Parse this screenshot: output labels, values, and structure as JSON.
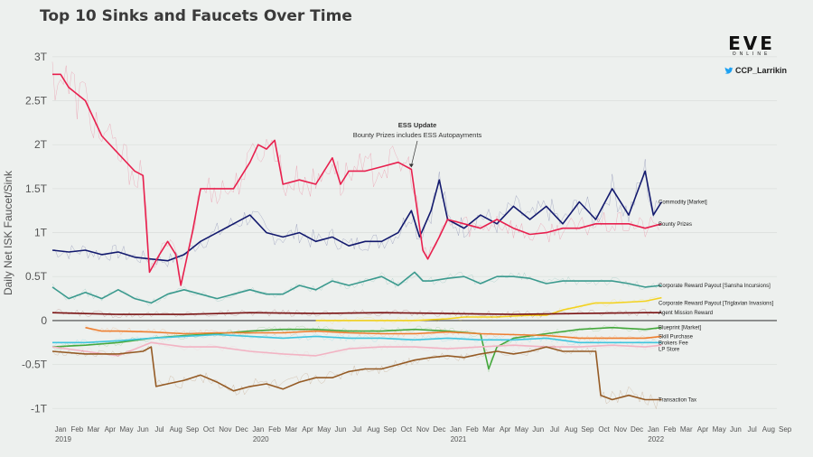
{
  "title": "Top 10 Sinks and Faucets Over Time",
  "logo": {
    "mark": "EVE",
    "sub": "ONLINE"
  },
  "twitter_handle": "CCP_Larrikin",
  "chart_data": {
    "type": "line",
    "title": "Top 10 Sinks and Faucets Over Time",
    "ylabel": "Daily Net ISK Faucet/Sink",
    "xlabel": "",
    "ylim": [
      -1.1,
      3.05
    ],
    "yticks": [
      {
        "v": 3,
        "label": "3T"
      },
      {
        "v": 2.5,
        "label": "2.5T"
      },
      {
        "v": 2,
        "label": "2T"
      },
      {
        "v": 1.5,
        "label": "1.5T"
      },
      {
        "v": 1,
        "label": "1T"
      },
      {
        "v": 0.5,
        "label": "0.5T"
      },
      {
        "v": 0,
        "label": "0"
      },
      {
        "v": -0.5,
        "label": "-0.5T"
      },
      {
        "v": -1,
        "label": "-1T"
      }
    ],
    "xlim": [
      0,
      44
    ],
    "xticks": [
      "Jan",
      "Feb",
      "Mar",
      "Apr",
      "May",
      "Jun",
      "Jul",
      "Aug",
      "Sep",
      "Oct",
      "Nov",
      "Dec",
      "Jan",
      "Feb",
      "Mar",
      "Apr",
      "May",
      "Jun",
      "Jul",
      "Aug",
      "Sep",
      "Oct",
      "Nov",
      "Dec",
      "Jan",
      "Feb",
      "Mar",
      "Apr",
      "May",
      "Jun",
      "Jul",
      "Aug",
      "Sep",
      "Oct",
      "Nov",
      "Dec",
      "Jan",
      "Feb",
      "Mar",
      "Apr",
      "May",
      "Jun",
      "Jul",
      "Aug",
      "Sep"
    ],
    "year_labels": [
      {
        "month_index": 0,
        "label": "2019"
      },
      {
        "month_index": 12,
        "label": "2020"
      },
      {
        "month_index": 24,
        "label": "2021"
      },
      {
        "month_index": 36,
        "label": "2022"
      }
    ],
    "annotation": {
      "title": "ESS Update",
      "text": "Bounty Prizes includes ESS Autopayments",
      "x": 21.8,
      "y": 1.72
    },
    "series": [
      {
        "name": "Commodity [Market]",
        "color": "#131a6e",
        "points": [
          [
            0,
            0.8
          ],
          [
            1,
            0.78
          ],
          [
            2,
            0.8
          ],
          [
            3,
            0.75
          ],
          [
            4,
            0.78
          ],
          [
            5,
            0.72
          ],
          [
            6,
            0.7
          ],
          [
            7,
            0.68
          ],
          [
            8,
            0.75
          ],
          [
            9,
            0.9
          ],
          [
            10,
            1.0
          ],
          [
            11,
            1.1
          ],
          [
            12,
            1.2
          ],
          [
            13,
            1.0
          ],
          [
            14,
            0.95
          ],
          [
            15,
            1.0
          ],
          [
            16,
            0.9
          ],
          [
            17,
            0.95
          ],
          [
            18,
            0.85
          ],
          [
            19,
            0.9
          ],
          [
            20,
            0.9
          ],
          [
            21,
            1.0
          ],
          [
            21.8,
            1.25
          ],
          [
            22.3,
            0.95
          ],
          [
            23,
            1.25
          ],
          [
            23.5,
            1.6
          ],
          [
            24,
            1.15
          ],
          [
            25,
            1.05
          ],
          [
            26,
            1.2
          ],
          [
            27,
            1.1
          ],
          [
            28,
            1.3
          ],
          [
            29,
            1.15
          ],
          [
            30,
            1.3
          ],
          [
            31,
            1.1
          ],
          [
            32,
            1.35
          ],
          [
            33,
            1.15
          ],
          [
            34,
            1.5
          ],
          [
            35,
            1.2
          ],
          [
            36,
            1.7
          ],
          [
            36.5,
            1.2
          ],
          [
            37,
            1.35
          ]
        ]
      },
      {
        "name": "Bounty Prizes",
        "color": "#e8204e",
        "points": [
          [
            0,
            2.8
          ],
          [
            0.5,
            2.8
          ],
          [
            1,
            2.65
          ],
          [
            2,
            2.5
          ],
          [
            3,
            2.1
          ],
          [
            4,
            1.9
          ],
          [
            5,
            1.7
          ],
          [
            5.5,
            1.65
          ],
          [
            5.9,
            0.55
          ],
          [
            6.5,
            0.75
          ],
          [
            7,
            0.9
          ],
          [
            7.5,
            0.75
          ],
          [
            7.8,
            0.4
          ],
          [
            8.5,
            1.0
          ],
          [
            9,
            1.5
          ],
          [
            10,
            1.5
          ],
          [
            11,
            1.5
          ],
          [
            12,
            1.8
          ],
          [
            12.5,
            2.0
          ],
          [
            13,
            1.95
          ],
          [
            13.5,
            2.05
          ],
          [
            14,
            1.55
          ],
          [
            15,
            1.6
          ],
          [
            16,
            1.55
          ],
          [
            17,
            1.85
          ],
          [
            17.5,
            1.55
          ],
          [
            18,
            1.7
          ],
          [
            19,
            1.7
          ],
          [
            20,
            1.75
          ],
          [
            21,
            1.8
          ],
          [
            21.8,
            1.72
          ],
          [
            22.5,
            0.8
          ],
          [
            22.8,
            0.7
          ],
          [
            23.5,
            0.95
          ],
          [
            24,
            1.15
          ],
          [
            25,
            1.1
          ],
          [
            26,
            1.05
          ],
          [
            27,
            1.15
          ],
          [
            28,
            1.05
          ],
          [
            29,
            0.98
          ],
          [
            30,
            1.0
          ],
          [
            31,
            1.05
          ],
          [
            32,
            1.05
          ],
          [
            33,
            1.1
          ],
          [
            34,
            1.1
          ],
          [
            35,
            1.1
          ],
          [
            36,
            1.05
          ],
          [
            37,
            1.1
          ]
        ]
      },
      {
        "name": "Corporate Reward Payout [Sansha Incursions]",
        "color": "#3b9a8e",
        "points": [
          [
            0,
            0.38
          ],
          [
            1,
            0.25
          ],
          [
            2,
            0.32
          ],
          [
            3,
            0.25
          ],
          [
            4,
            0.35
          ],
          [
            5,
            0.25
          ],
          [
            6,
            0.2
          ],
          [
            7,
            0.3
          ],
          [
            8,
            0.35
          ],
          [
            9,
            0.3
          ],
          [
            10,
            0.25
          ],
          [
            11,
            0.3
          ],
          [
            12,
            0.35
          ],
          [
            13,
            0.3
          ],
          [
            14,
            0.3
          ],
          [
            15,
            0.4
          ],
          [
            16,
            0.35
          ],
          [
            17,
            0.45
          ],
          [
            18,
            0.4
          ],
          [
            19,
            0.45
          ],
          [
            20,
            0.5
          ],
          [
            21,
            0.4
          ],
          [
            22,
            0.55
          ],
          [
            22.5,
            0.45
          ],
          [
            23,
            0.45
          ],
          [
            24,
            0.48
          ],
          [
            25,
            0.5
          ],
          [
            26,
            0.42
          ],
          [
            27,
            0.5
          ],
          [
            28,
            0.5
          ],
          [
            29,
            0.48
          ],
          [
            30,
            0.42
          ],
          [
            31,
            0.45
          ],
          [
            32,
            0.45
          ],
          [
            33,
            0.45
          ],
          [
            34,
            0.45
          ],
          [
            35,
            0.42
          ],
          [
            36,
            0.38
          ],
          [
            37,
            0.4
          ]
        ]
      },
      {
        "name": "Corporate Reward Payout [Triglavian Invasions]",
        "color": "#f3d21f",
        "points": [
          [
            16,
            0.0
          ],
          [
            17,
            0.0
          ],
          [
            18,
            0.0
          ],
          [
            19,
            0.0
          ],
          [
            20,
            0.0
          ],
          [
            21,
            0.0
          ],
          [
            22,
            0.0
          ],
          [
            23,
            0.01
          ],
          [
            24,
            0.02
          ],
          [
            25,
            0.04
          ],
          [
            26,
            0.04
          ],
          [
            27,
            0.04
          ],
          [
            28,
            0.05
          ],
          [
            29,
            0.06
          ],
          [
            30,
            0.06
          ],
          [
            31,
            0.12
          ],
          [
            32,
            0.16
          ],
          [
            33,
            0.2
          ],
          [
            34,
            0.2
          ],
          [
            35,
            0.21
          ],
          [
            36,
            0.22
          ],
          [
            37,
            0.26
          ]
        ]
      },
      {
        "name": "Agent Mission Reward",
        "color": "#7a1414",
        "points": [
          [
            0,
            0.09
          ],
          [
            4,
            0.07
          ],
          [
            8,
            0.07
          ],
          [
            12,
            0.09
          ],
          [
            16,
            0.08
          ],
          [
            20,
            0.09
          ],
          [
            24,
            0.08
          ],
          [
            28,
            0.07
          ],
          [
            32,
            0.08
          ],
          [
            36,
            0.09
          ],
          [
            37,
            0.09
          ]
        ]
      },
      {
        "name": "Blueprint [Market]",
        "color": "#44a83c",
        "points": [
          [
            0,
            -0.3
          ],
          [
            2,
            -0.28
          ],
          [
            4,
            -0.25
          ],
          [
            6,
            -0.2
          ],
          [
            8,
            -0.17
          ],
          [
            10,
            -0.15
          ],
          [
            12,
            -0.12
          ],
          [
            14,
            -0.1
          ],
          [
            16,
            -0.1
          ],
          [
            18,
            -0.12
          ],
          [
            20,
            -0.12
          ],
          [
            22,
            -0.1
          ],
          [
            24,
            -0.12
          ],
          [
            26,
            -0.15
          ],
          [
            26.5,
            -0.55
          ],
          [
            27,
            -0.3
          ],
          [
            28,
            -0.2
          ],
          [
            30,
            -0.15
          ],
          [
            32,
            -0.1
          ],
          [
            34,
            -0.08
          ],
          [
            36,
            -0.1
          ],
          [
            37,
            -0.08
          ]
        ]
      },
      {
        "name": "Skill Purchase",
        "color": "#ee7f31",
        "points": [
          [
            2,
            -0.08
          ],
          [
            3,
            -0.12
          ],
          [
            4,
            -0.12
          ],
          [
            6,
            -0.13
          ],
          [
            8,
            -0.15
          ],
          [
            10,
            -0.14
          ],
          [
            12,
            -0.14
          ],
          [
            14,
            -0.14
          ],
          [
            16,
            -0.12
          ],
          [
            18,
            -0.14
          ],
          [
            20,
            -0.15
          ],
          [
            22,
            -0.15
          ],
          [
            24,
            -0.13
          ],
          [
            26,
            -0.15
          ],
          [
            28,
            -0.16
          ],
          [
            30,
            -0.17
          ],
          [
            32,
            -0.2
          ],
          [
            34,
            -0.2
          ],
          [
            36,
            -0.2
          ],
          [
            37,
            -0.18
          ]
        ]
      },
      {
        "name": "Brokers Fee",
        "color": "#3fc5de",
        "points": [
          [
            0,
            -0.25
          ],
          [
            2,
            -0.25
          ],
          [
            4,
            -0.23
          ],
          [
            6,
            -0.2
          ],
          [
            8,
            -0.18
          ],
          [
            10,
            -0.16
          ],
          [
            12,
            -0.18
          ],
          [
            14,
            -0.2
          ],
          [
            16,
            -0.18
          ],
          [
            18,
            -0.2
          ],
          [
            20,
            -0.2
          ],
          [
            22,
            -0.22
          ],
          [
            24,
            -0.2
          ],
          [
            26,
            -0.22
          ],
          [
            28,
            -0.22
          ],
          [
            30,
            -0.2
          ],
          [
            32,
            -0.25
          ],
          [
            34,
            -0.25
          ],
          [
            36,
            -0.25
          ],
          [
            37,
            -0.25
          ]
        ]
      },
      {
        "name": "LP Store",
        "color": "#f2b3c3",
        "points": [
          [
            0,
            -0.3
          ],
          [
            2,
            -0.35
          ],
          [
            4,
            -0.4
          ],
          [
            6,
            -0.25
          ],
          [
            8,
            -0.3
          ],
          [
            10,
            -0.3
          ],
          [
            12,
            -0.35
          ],
          [
            14,
            -0.38
          ],
          [
            16,
            -0.4
          ],
          [
            18,
            -0.32
          ],
          [
            20,
            -0.3
          ],
          [
            22,
            -0.3
          ],
          [
            24,
            -0.32
          ],
          [
            26,
            -0.3
          ],
          [
            28,
            -0.28
          ],
          [
            30,
            -0.3
          ],
          [
            32,
            -0.3
          ],
          [
            34,
            -0.28
          ],
          [
            36,
            -0.3
          ],
          [
            37,
            -0.28
          ]
        ]
      },
      {
        "name": "Transaction Tax",
        "color": "#955b25",
        "points": [
          [
            0,
            -0.35
          ],
          [
            2,
            -0.38
          ],
          [
            4,
            -0.38
          ],
          [
            5.5,
            -0.35
          ],
          [
            6,
            -0.3
          ],
          [
            6.3,
            -0.75
          ],
          [
            7,
            -0.72
          ],
          [
            8,
            -0.68
          ],
          [
            9,
            -0.62
          ],
          [
            10,
            -0.7
          ],
          [
            11,
            -0.8
          ],
          [
            12,
            -0.75
          ],
          [
            13,
            -0.72
          ],
          [
            14,
            -0.78
          ],
          [
            15,
            -0.7
          ],
          [
            16,
            -0.65
          ],
          [
            17,
            -0.65
          ],
          [
            18,
            -0.58
          ],
          [
            19,
            -0.55
          ],
          [
            20,
            -0.55
          ],
          [
            21,
            -0.5
          ],
          [
            22,
            -0.45
          ],
          [
            23,
            -0.42
          ],
          [
            24,
            -0.4
          ],
          [
            25,
            -0.42
          ],
          [
            26,
            -0.38
          ],
          [
            27,
            -0.35
          ],
          [
            28,
            -0.38
          ],
          [
            29,
            -0.35
          ],
          [
            30,
            -0.3
          ],
          [
            31,
            -0.35
          ],
          [
            32,
            -0.35
          ],
          [
            33,
            -0.35
          ],
          [
            33.3,
            -0.85
          ],
          [
            34,
            -0.9
          ],
          [
            35,
            -0.85
          ],
          [
            36,
            -0.9
          ],
          [
            37,
            -0.9
          ]
        ]
      }
    ]
  }
}
